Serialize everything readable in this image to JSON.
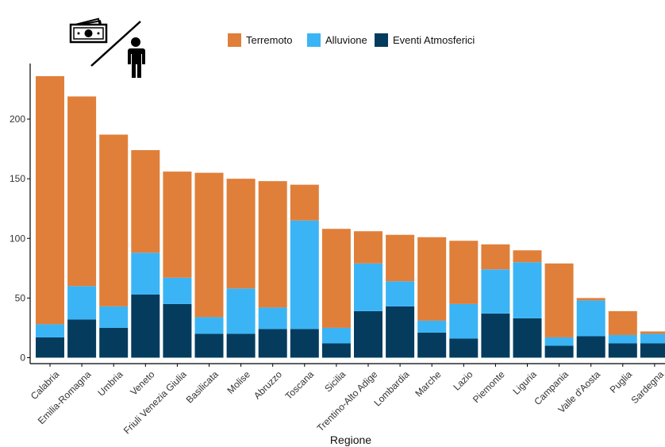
{
  "colors": {
    "terremoto": "#E07F3A",
    "alluvione": "#3BB4F5",
    "eventi": "#053C5E",
    "axis": "#000000"
  },
  "icons": [
    "money-bills-icon",
    "person-icon"
  ],
  "chart_data": {
    "type": "bar",
    "stacked": true,
    "categories": [
      "Calabria",
      "Emilia-Romagna",
      "Umbria",
      "Veneto",
      "Friuli Venezia Giulia",
      "Basilicata",
      "Molise",
      "Abruzzo",
      "Toscana",
      "Sicilia",
      "Trentino-Alto Adige",
      "Lombardia",
      "Marche",
      "Lazio",
      "Piemonte",
      "Liguria",
      "Campania",
      "Valle d'Aosta",
      "Puglia",
      "Sardegna"
    ],
    "series": [
      {
        "name": "Eventi Atmosferici",
        "color": "#053C5E",
        "values": [
          17,
          32,
          25,
          53,
          45,
          20,
          20,
          24,
          24,
          12,
          39,
          43,
          21,
          16,
          37,
          33,
          10,
          18,
          12,
          12
        ]
      },
      {
        "name": "Alluvione",
        "color": "#3BB4F5",
        "values": [
          11,
          28,
          18,
          35,
          22,
          14,
          38,
          18,
          91,
          13,
          40,
          21,
          10,
          29,
          37,
          47,
          7,
          30,
          7,
          8
        ]
      },
      {
        "name": "Terremoto",
        "color": "#E07F3A",
        "values": [
          208,
          159,
          144,
          86,
          89,
          121,
          92,
          106,
          30,
          83,
          27,
          39,
          70,
          53,
          21,
          10,
          62,
          2,
          20,
          2
        ]
      }
    ],
    "legend_order": [
      "Terremoto",
      "Alluvione",
      "Eventi Atmosferici"
    ],
    "legend_position": "top",
    "xlabel": "Regione",
    "ylabel": "",
    "yticks": [
      0,
      50,
      100,
      150,
      200
    ],
    "ylim": [
      0,
      250
    ],
    "grid": false
  }
}
